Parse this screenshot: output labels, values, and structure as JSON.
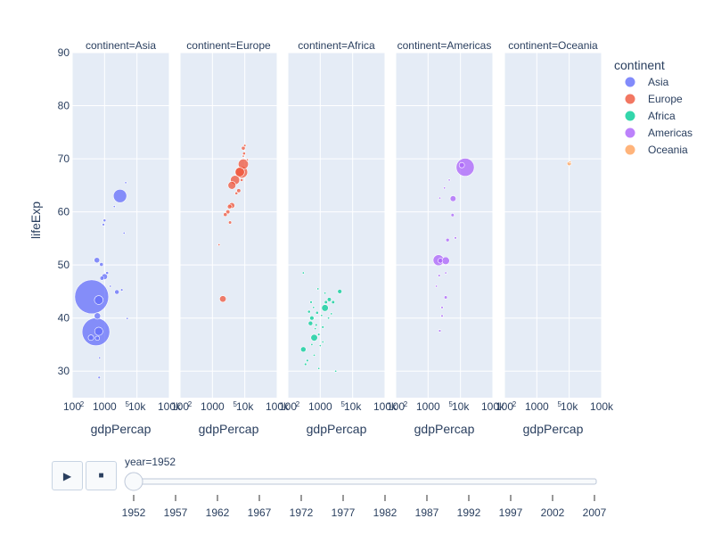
{
  "chart_data": {
    "type": "scatter",
    "x_axis_type": "log",
    "xlabel": "gdpPercap",
    "ylabel": "lifeExp",
    "xlim": [
      100,
      100000
    ],
    "ylim": [
      25,
      90
    ],
    "y_ticks": [
      30,
      40,
      50,
      60,
      70,
      80,
      90
    ],
    "x_ticks": [
      {
        "value": 100,
        "label": "100"
      },
      {
        "value": 1000,
        "label": "1000"
      },
      {
        "value": 10000,
        "label": "10k"
      },
      {
        "value": 100000,
        "label": "100k"
      }
    ],
    "x_minor_ticks": [
      {
        "value": 200,
        "label": "2"
      },
      {
        "value": 5000,
        "label": "5"
      }
    ],
    "grid": true,
    "legend": {
      "title": "continent",
      "placement": "top-right"
    },
    "facets": [
      {
        "label": "continent=Asia",
        "continent": "Asia"
      },
      {
        "label": "continent=Europe",
        "continent": "Europe"
      },
      {
        "label": "continent=Africa",
        "continent": "Africa"
      },
      {
        "label": "continent=Americas",
        "continent": "Americas"
      },
      {
        "label": "continent=Oceania",
        "continent": "Oceania"
      }
    ],
    "series": [
      {
        "name": "Asia",
        "color": "#636efa",
        "points": [
          {
            "x": 400,
            "y": 44,
            "pop": 556
          },
          {
            "x": 540,
            "y": 37.4,
            "pop": 372
          },
          {
            "x": 3000,
            "y": 63,
            "pop": 86
          },
          {
            "x": 660,
            "y": 43.4,
            "pop": 37
          },
          {
            "x": 660,
            "y": 37.5,
            "pop": 33
          },
          {
            "x": 600,
            "y": 40.4,
            "pop": 20
          },
          {
            "x": 1000,
            "y": 47.8,
            "pop": 17
          },
          {
            "x": 580,
            "y": 50.9,
            "pop": 15
          },
          {
            "x": 380,
            "y": 36.3,
            "pop": 15
          },
          {
            "x": 2400,
            "y": 44.9,
            "pop": 10
          },
          {
            "x": 600,
            "y": 36.2,
            "pop": 9
          },
          {
            "x": 830,
            "y": 47.5,
            "pop": 8
          },
          {
            "x": 800,
            "y": 50.1,
            "pop": 7
          },
          {
            "x": 1000,
            "y": 58.4,
            "pop": 4
          },
          {
            "x": 1200,
            "y": 48.5,
            "pop": 4
          },
          {
            "x": 920,
            "y": 57.6,
            "pop": 3
          },
          {
            "x": 3400,
            "y": 45.3,
            "pop": 3
          },
          {
            "x": 5000,
            "y": 39.9,
            "pop": 1
          },
          {
            "x": 700,
            "y": 32.5,
            "pop": 2
          },
          {
            "x": 680,
            "y": 28.8,
            "pop": 3
          },
          {
            "x": 2000,
            "y": 61,
            "pop": 1
          },
          {
            "x": 4000,
            "y": 56,
            "pop": 1
          },
          {
            "x": 1500,
            "y": 46,
            "pop": 1
          },
          {
            "x": 4500,
            "y": 65.5,
            "pop": 1
          }
        ]
      },
      {
        "name": "Europe",
        "color": "#ef553b",
        "points": [
          {
            "x": 8000,
            "y": 67.5,
            "pop": 69
          },
          {
            "x": 9000,
            "y": 69,
            "pop": 50
          },
          {
            "x": 7000,
            "y": 67.5,
            "pop": 43
          },
          {
            "x": 5000,
            "y": 66,
            "pop": 42
          },
          {
            "x": 4000,
            "y": 65,
            "pop": 30
          },
          {
            "x": 2100,
            "y": 43.6,
            "pop": 21
          },
          {
            "x": 4000,
            "y": 61.2,
            "pop": 16
          },
          {
            "x": 3400,
            "y": 61,
            "pop": 10
          },
          {
            "x": 6500,
            "y": 64,
            "pop": 8
          },
          {
            "x": 3000,
            "y": 60,
            "pop": 8
          },
          {
            "x": 2500,
            "y": 59.5,
            "pop": 7
          },
          {
            "x": 3500,
            "y": 58,
            "pop": 5
          },
          {
            "x": 9000,
            "y": 72,
            "pop": 7
          },
          {
            "x": 8000,
            "y": 66,
            "pop": 4
          },
          {
            "x": 9500,
            "y": 71,
            "pop": 4
          },
          {
            "x": 5500,
            "y": 63.5,
            "pop": 4
          },
          {
            "x": 1600,
            "y": 53.8,
            "pop": 1
          },
          {
            "x": 10000,
            "y": 72.5,
            "pop": 3
          },
          {
            "x": 12000,
            "y": 69.8,
            "pop": 1
          },
          {
            "x": 9000,
            "y": 70.5,
            "pop": 2
          }
        ]
      },
      {
        "name": "Africa",
        "color": "#00cc96",
        "points": [
          {
            "x": 650,
            "y": 36.3,
            "pop": 22
          },
          {
            "x": 1400,
            "y": 41.9,
            "pop": 22
          },
          {
            "x": 300,
            "y": 34.1,
            "pop": 14
          },
          {
            "x": 500,
            "y": 39,
            "pop": 10
          },
          {
            "x": 1900,
            "y": 43.5,
            "pop": 8
          },
          {
            "x": 4000,
            "y": 45,
            "pop": 9
          },
          {
            "x": 550,
            "y": 40,
            "pop": 9
          },
          {
            "x": 2500,
            "y": 43,
            "pop": 5
          },
          {
            "x": 1500,
            "y": 43,
            "pop": 5
          },
          {
            "x": 800,
            "y": 41,
            "pop": 4
          },
          {
            "x": 450,
            "y": 41.2,
            "pop": 4
          },
          {
            "x": 520,
            "y": 43,
            "pop": 3
          },
          {
            "x": 400,
            "y": 32,
            "pop": 3
          },
          {
            "x": 350,
            "y": 31.3,
            "pop": 3
          },
          {
            "x": 1200,
            "y": 38.3,
            "pop": 3
          },
          {
            "x": 750,
            "y": 38.7,
            "pop": 3
          },
          {
            "x": 900,
            "y": 36.9,
            "pop": 3
          },
          {
            "x": 1100,
            "y": 40.5,
            "pop": 2
          },
          {
            "x": 620,
            "y": 42,
            "pop": 2
          },
          {
            "x": 1000,
            "y": 34.8,
            "pop": 2
          },
          {
            "x": 1400,
            "y": 44.7,
            "pop": 2
          },
          {
            "x": 3000,
            "y": 30,
            "pop": 2
          },
          {
            "x": 1200,
            "y": 35.5,
            "pop": 2
          },
          {
            "x": 850,
            "y": 45.5,
            "pop": 1
          },
          {
            "x": 300,
            "y": 48.5,
            "pop": 1
          },
          {
            "x": 700,
            "y": 38,
            "pop": 1
          },
          {
            "x": 1800,
            "y": 40,
            "pop": 1
          },
          {
            "x": 550,
            "y": 35,
            "pop": 1
          },
          {
            "x": 900,
            "y": 30.5,
            "pop": 1
          },
          {
            "x": 650,
            "y": 33,
            "pop": 1
          },
          {
            "x": 2200,
            "y": 40.8,
            "pop": 1
          }
        ]
      },
      {
        "name": "Americas",
        "color": "#ab63fa",
        "points": [
          {
            "x": 14000,
            "y": 68.4,
            "pop": 158
          },
          {
            "x": 2100,
            "y": 50.9,
            "pop": 57
          },
          {
            "x": 3500,
            "y": 50.8,
            "pop": 28
          },
          {
            "x": 2400,
            "y": 50.8,
            "pop": 12
          },
          {
            "x": 11000,
            "y": 68.8,
            "pop": 14
          },
          {
            "x": 5900,
            "y": 62.5,
            "pop": 17
          },
          {
            "x": 5700,
            "y": 59.4,
            "pop": 5
          },
          {
            "x": 4000,
            "y": 54.7,
            "pop": 6
          },
          {
            "x": 7000,
            "y": 55.1,
            "pop": 3
          },
          {
            "x": 3500,
            "y": 43.9,
            "pop": 5
          },
          {
            "x": 2200,
            "y": 48,
            "pop": 3
          },
          {
            "x": 2700,
            "y": 42,
            "pop": 3
          },
          {
            "x": 2700,
            "y": 40.4,
            "pop": 3
          },
          {
            "x": 2300,
            "y": 37.6,
            "pop": 3
          },
          {
            "x": 4500,
            "y": 66,
            "pop": 1
          },
          {
            "x": 3200,
            "y": 64.5,
            "pop": 1
          },
          {
            "x": 2300,
            "y": 62.6,
            "pop": 1
          },
          {
            "x": 3500,
            "y": 48.5,
            "pop": 1
          },
          {
            "x": 1800,
            "y": 46,
            "pop": 1
          }
        ]
      },
      {
        "name": "Oceania",
        "color": "#ffa15a",
        "points": [
          {
            "x": 10000,
            "y": 69.1,
            "pop": 9
          },
          {
            "x": 10600,
            "y": 69.4,
            "pop": 2
          }
        ]
      }
    ]
  },
  "animation": {
    "play_icon": "play-icon",
    "stop_icon": "stop-icon",
    "play_symbol": "▶",
    "stop_symbol": "■",
    "current_label": "year=1952",
    "current_value": "1952",
    "ticks": [
      "1952",
      "1957",
      "1962",
      "1967",
      "1972",
      "1977",
      "1982",
      "1987",
      "1992",
      "1997",
      "2002",
      "2007"
    ]
  }
}
